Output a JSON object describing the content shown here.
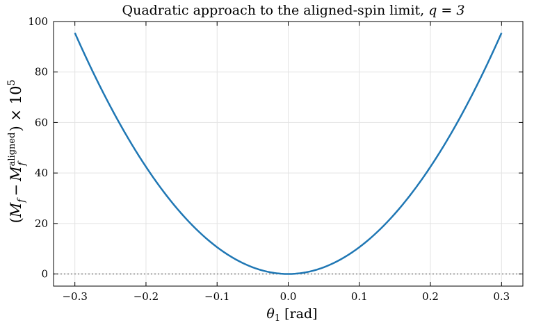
{
  "chart_data": {
    "type": "line",
    "title": "Quadratic approach to the aligned-spin limit, ",
    "title_math": "q = 3",
    "xlabel_symbol": "θ",
    "xlabel_subscript": "1",
    "xlabel_unit": "[rad]",
    "ylabel_prefix": "(",
    "ylabel_mf": "M",
    "ylabel_sub_f": "f",
    "ylabel_minus": "−",
    "ylabel_sup_aligned": "aligned",
    "ylabel_suffix": ") × 10",
    "ylabel_exponent": "5",
    "xlim": [
      -0.33,
      0.33
    ],
    "ylim": [
      -4.8,
      100
    ],
    "xticks": [
      -0.3,
      -0.2,
      -0.1,
      0.0,
      0.1,
      0.2,
      0.3
    ],
    "xtick_labels": [
      "−0.3",
      "−0.2",
      "−0.1",
      "0.0",
      "0.1",
      "0.2",
      "0.3"
    ],
    "yticks": [
      0,
      20,
      40,
      60,
      80,
      100
    ],
    "ytick_labels": [
      "0",
      "20",
      "40",
      "60",
      "80",
      "100"
    ],
    "grid": true,
    "reference_line": {
      "y": 0,
      "style": "dotted",
      "color": "#808080"
    },
    "series": [
      {
        "color": "#1f77b4",
        "x": [
          -0.3,
          -0.25,
          -0.2,
          -0.15,
          -0.1,
          -0.05,
          0.0,
          0.05,
          0.1,
          0.15,
          0.2,
          0.25,
          0.3
        ],
        "y": [
          95.5,
          66.3,
          42.4,
          23.9,
          10.6,
          2.65,
          0.0,
          2.65,
          10.6,
          23.9,
          42.4,
          66.3,
          95.5
        ]
      }
    ]
  }
}
